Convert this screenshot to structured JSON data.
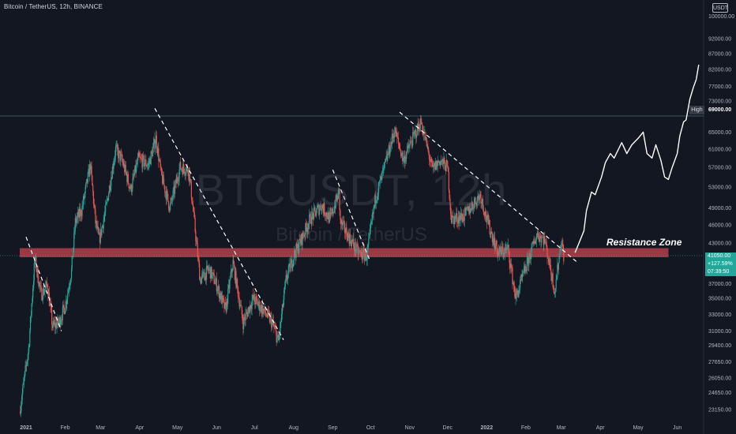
{
  "header": {
    "symbol_line": "Bitcoin / TetherUS, 12h, BINANCE",
    "currency_button": "USDT"
  },
  "watermark": {
    "main": "BTCUSDT, 12h",
    "sub": "Bitcoin / TetherUS"
  },
  "annotations": {
    "resistance_zone_label": "Resistance Zone",
    "high_tag": "High",
    "high_price": "69000.00"
  },
  "last_price": {
    "price": "41050.00",
    "change": "+127.59%",
    "countdown": "07:39:50"
  },
  "colors": {
    "background": "#131722",
    "up_candle": "#26a69a",
    "down_candle": "#ef5350",
    "resistance_zone": "#b2404a",
    "trendline": "#ffffff",
    "projection": "#ffffff",
    "price_box": "#26a69a"
  },
  "chart_data": {
    "type": "candlestick",
    "symbol": "BTCUSDT",
    "interval": "12h",
    "exchange": "BINANCE",
    "scale": "log",
    "x_range": [
      "2021-01-01",
      "2022-06-15"
    ],
    "y_range": [
      22350,
      105000
    ],
    "x_ticks": [
      {
        "label": "2021",
        "date": "2021-01-01"
      },
      {
        "label": "Feb",
        "date": "2021-02-01"
      },
      {
        "label": "Mar",
        "date": "2021-03-01"
      },
      {
        "label": "Apr",
        "date": "2021-04-01"
      },
      {
        "label": "May",
        "date": "2021-05-01"
      },
      {
        "label": "Jun",
        "date": "2021-06-01"
      },
      {
        "label": "Jul",
        "date": "2021-07-01"
      },
      {
        "label": "Aug",
        "date": "2021-08-01"
      },
      {
        "label": "Sep",
        "date": "2021-09-01"
      },
      {
        "label": "Oct",
        "date": "2021-10-01"
      },
      {
        "label": "Nov",
        "date": "2021-11-01"
      },
      {
        "label": "Dec",
        "date": "2021-12-01"
      },
      {
        "label": "2022",
        "date": "2022-01-01"
      },
      {
        "label": "Feb",
        "date": "2022-02-01"
      },
      {
        "label": "Mar",
        "date": "2022-03-01"
      },
      {
        "label": "Apr",
        "date": "2022-04-01"
      },
      {
        "label": "May",
        "date": "2022-05-01"
      },
      {
        "label": "Jun",
        "date": "2022-06-01"
      }
    ],
    "y_ticks": [
      {
        "label": "100000.00",
        "value": 100000
      },
      {
        "label": "92000.00",
        "value": 92000
      },
      {
        "label": "87000.00",
        "value": 87000
      },
      {
        "label": "82000.00",
        "value": 82000
      },
      {
        "label": "77000.00",
        "value": 77000
      },
      {
        "label": "73000.00",
        "value": 73000
      },
      {
        "label": "65000.00",
        "value": 65000
      },
      {
        "label": "61000.00",
        "value": 61000
      },
      {
        "label": "57000.00",
        "value": 57000
      },
      {
        "label": "53000.00",
        "value": 53000
      },
      {
        "label": "49000.00",
        "value": 49000
      },
      {
        "label": "46000.00",
        "value": 46000
      },
      {
        "label": "43000.00",
        "value": 43000
      },
      {
        "label": "37000.00",
        "value": 37000
      },
      {
        "label": "35000.00",
        "value": 35000
      },
      {
        "label": "33000.00",
        "value": 33000
      },
      {
        "label": "31000.00",
        "value": 31000
      },
      {
        "label": "29400.00",
        "value": 29400
      },
      {
        "label": "27650.00",
        "value": 27650
      },
      {
        "label": "26050.00",
        "value": 26050
      },
      {
        "label": "24650.00",
        "value": 24650
      },
      {
        "label": "23150.00",
        "value": 23150
      }
    ],
    "price_path": [
      [
        "2020-12-27",
        23000
      ],
      [
        "2021-01-03",
        29000
      ],
      [
        "2021-01-08",
        40500
      ],
      [
        "2021-01-13",
        35500
      ],
      [
        "2021-01-18",
        36800
      ],
      [
        "2021-01-22",
        31500
      ],
      [
        "2021-01-27",
        32000
      ],
      [
        "2021-02-01",
        34000
      ],
      [
        "2021-02-06",
        38800
      ],
      [
        "2021-02-09",
        46500
      ],
      [
        "2021-02-14",
        48500
      ],
      [
        "2021-02-21",
        57500
      ],
      [
        "2021-02-25",
        46500
      ],
      [
        "2021-02-28",
        43500
      ],
      [
        "2021-03-05",
        48500
      ],
      [
        "2021-03-10",
        56000
      ],
      [
        "2021-03-13",
        61000
      ],
      [
        "2021-03-18",
        58500
      ],
      [
        "2021-03-25",
        52500
      ],
      [
        "2021-03-31",
        58800
      ],
      [
        "2021-04-08",
        57500
      ],
      [
        "2021-04-14",
        63500
      ],
      [
        "2021-04-18",
        55500
      ],
      [
        "2021-04-25",
        49000
      ],
      [
        "2021-05-03",
        57000
      ],
      [
        "2021-05-10",
        56500
      ],
      [
        "2021-05-13",
        49500
      ],
      [
        "2021-05-19",
        37500
      ],
      [
        "2021-05-26",
        39000
      ],
      [
        "2021-06-01",
        36800
      ],
      [
        "2021-06-08",
        33500
      ],
      [
        "2021-06-14",
        40000
      ],
      [
        "2021-06-22",
        32000
      ],
      [
        "2021-06-30",
        35000
      ],
      [
        "2021-07-08",
        33500
      ],
      [
        "2021-07-15",
        32000
      ],
      [
        "2021-07-20",
        29800
      ],
      [
        "2021-07-26",
        37500
      ],
      [
        "2021-08-01",
        41000
      ],
      [
        "2021-08-07",
        43500
      ],
      [
        "2021-08-14",
        47000
      ],
      [
        "2021-08-23",
        49500
      ],
      [
        "2021-08-30",
        47000
      ],
      [
        "2021-09-06",
        52000
      ],
      [
        "2021-09-07",
        46500
      ],
      [
        "2021-09-21",
        41500
      ],
      [
        "2021-09-28",
        41000
      ],
      [
        "2021-10-05",
        51000
      ],
      [
        "2021-10-10",
        55000
      ],
      [
        "2021-10-20",
        65500
      ],
      [
        "2021-10-27",
        58500
      ],
      [
        "2021-11-02",
        62500
      ],
      [
        "2021-11-10",
        67500
      ],
      [
        "2021-11-19",
        56500
      ],
      [
        "2021-11-25",
        58500
      ],
      [
        "2021-12-01",
        57000
      ],
      [
        "2021-12-04",
        47000
      ],
      [
        "2021-12-14",
        47500
      ],
      [
        "2021-12-27",
        51500
      ],
      [
        "2022-01-01",
        47000
      ],
      [
        "2022-01-10",
        41500
      ],
      [
        "2022-01-18",
        42000
      ],
      [
        "2022-01-24",
        35000
      ],
      [
        "2022-02-05",
        41500
      ],
      [
        "2022-02-10",
        44500
      ],
      [
        "2022-02-16",
        43500
      ],
      [
        "2022-02-24",
        36000
      ],
      [
        "2022-03-01",
        43500
      ],
      [
        "2022-03-03",
        41050
      ]
    ],
    "projection": [
      [
        "2022-03-12",
        41500
      ],
      [
        "2022-03-19",
        45000
      ],
      [
        "2022-03-21",
        48500
      ],
      [
        "2022-03-25",
        52000
      ],
      [
        "2022-03-28",
        51500
      ],
      [
        "2022-04-02",
        55000
      ],
      [
        "2022-04-05",
        58000
      ],
      [
        "2022-04-09",
        60000
      ],
      [
        "2022-04-12",
        59000
      ],
      [
        "2022-04-18",
        62500
      ],
      [
        "2022-04-22",
        60000
      ],
      [
        "2022-04-26",
        62000
      ],
      [
        "2022-05-01",
        63500
      ],
      [
        "2022-05-05",
        65000
      ],
      [
        "2022-05-08",
        60000
      ],
      [
        "2022-05-12",
        59000
      ],
      [
        "2022-05-15",
        62000
      ],
      [
        "2022-05-19",
        58500
      ],
      [
        "2022-05-22",
        55000
      ],
      [
        "2022-05-25",
        54500
      ],
      [
        "2022-05-28",
        57000
      ],
      [
        "2022-06-01",
        60000
      ],
      [
        "2022-06-03",
        64000
      ],
      [
        "2022-06-06",
        67500
      ],
      [
        "2022-06-08",
        68000
      ],
      [
        "2022-06-11",
        73500
      ],
      [
        "2022-06-14",
        77000
      ],
      [
        "2022-06-16",
        79000
      ],
      [
        "2022-06-18",
        83500
      ]
    ],
    "resistance_zone": {
      "low": 40800,
      "high": 42200,
      "from": "2020-12-27",
      "to": "2022-05-25"
    },
    "trendlines": [
      {
        "from": [
          "2021-01-01",
          44000
        ],
        "to": [
          "2021-01-29",
          31000
        ]
      },
      {
        "from": [
          "2021-04-13",
          71000
        ],
        "to": [
          "2021-07-24",
          30000
        ]
      },
      {
        "from": [
          "2021-09-01",
          56500
        ],
        "to": [
          "2021-09-30",
          40500
        ]
      },
      {
        "from": [
          "2021-10-24",
          70000
        ],
        "to": [
          "2022-03-14",
          40000
        ]
      }
    ],
    "high_level": 69000,
    "last_price": 41050
  }
}
